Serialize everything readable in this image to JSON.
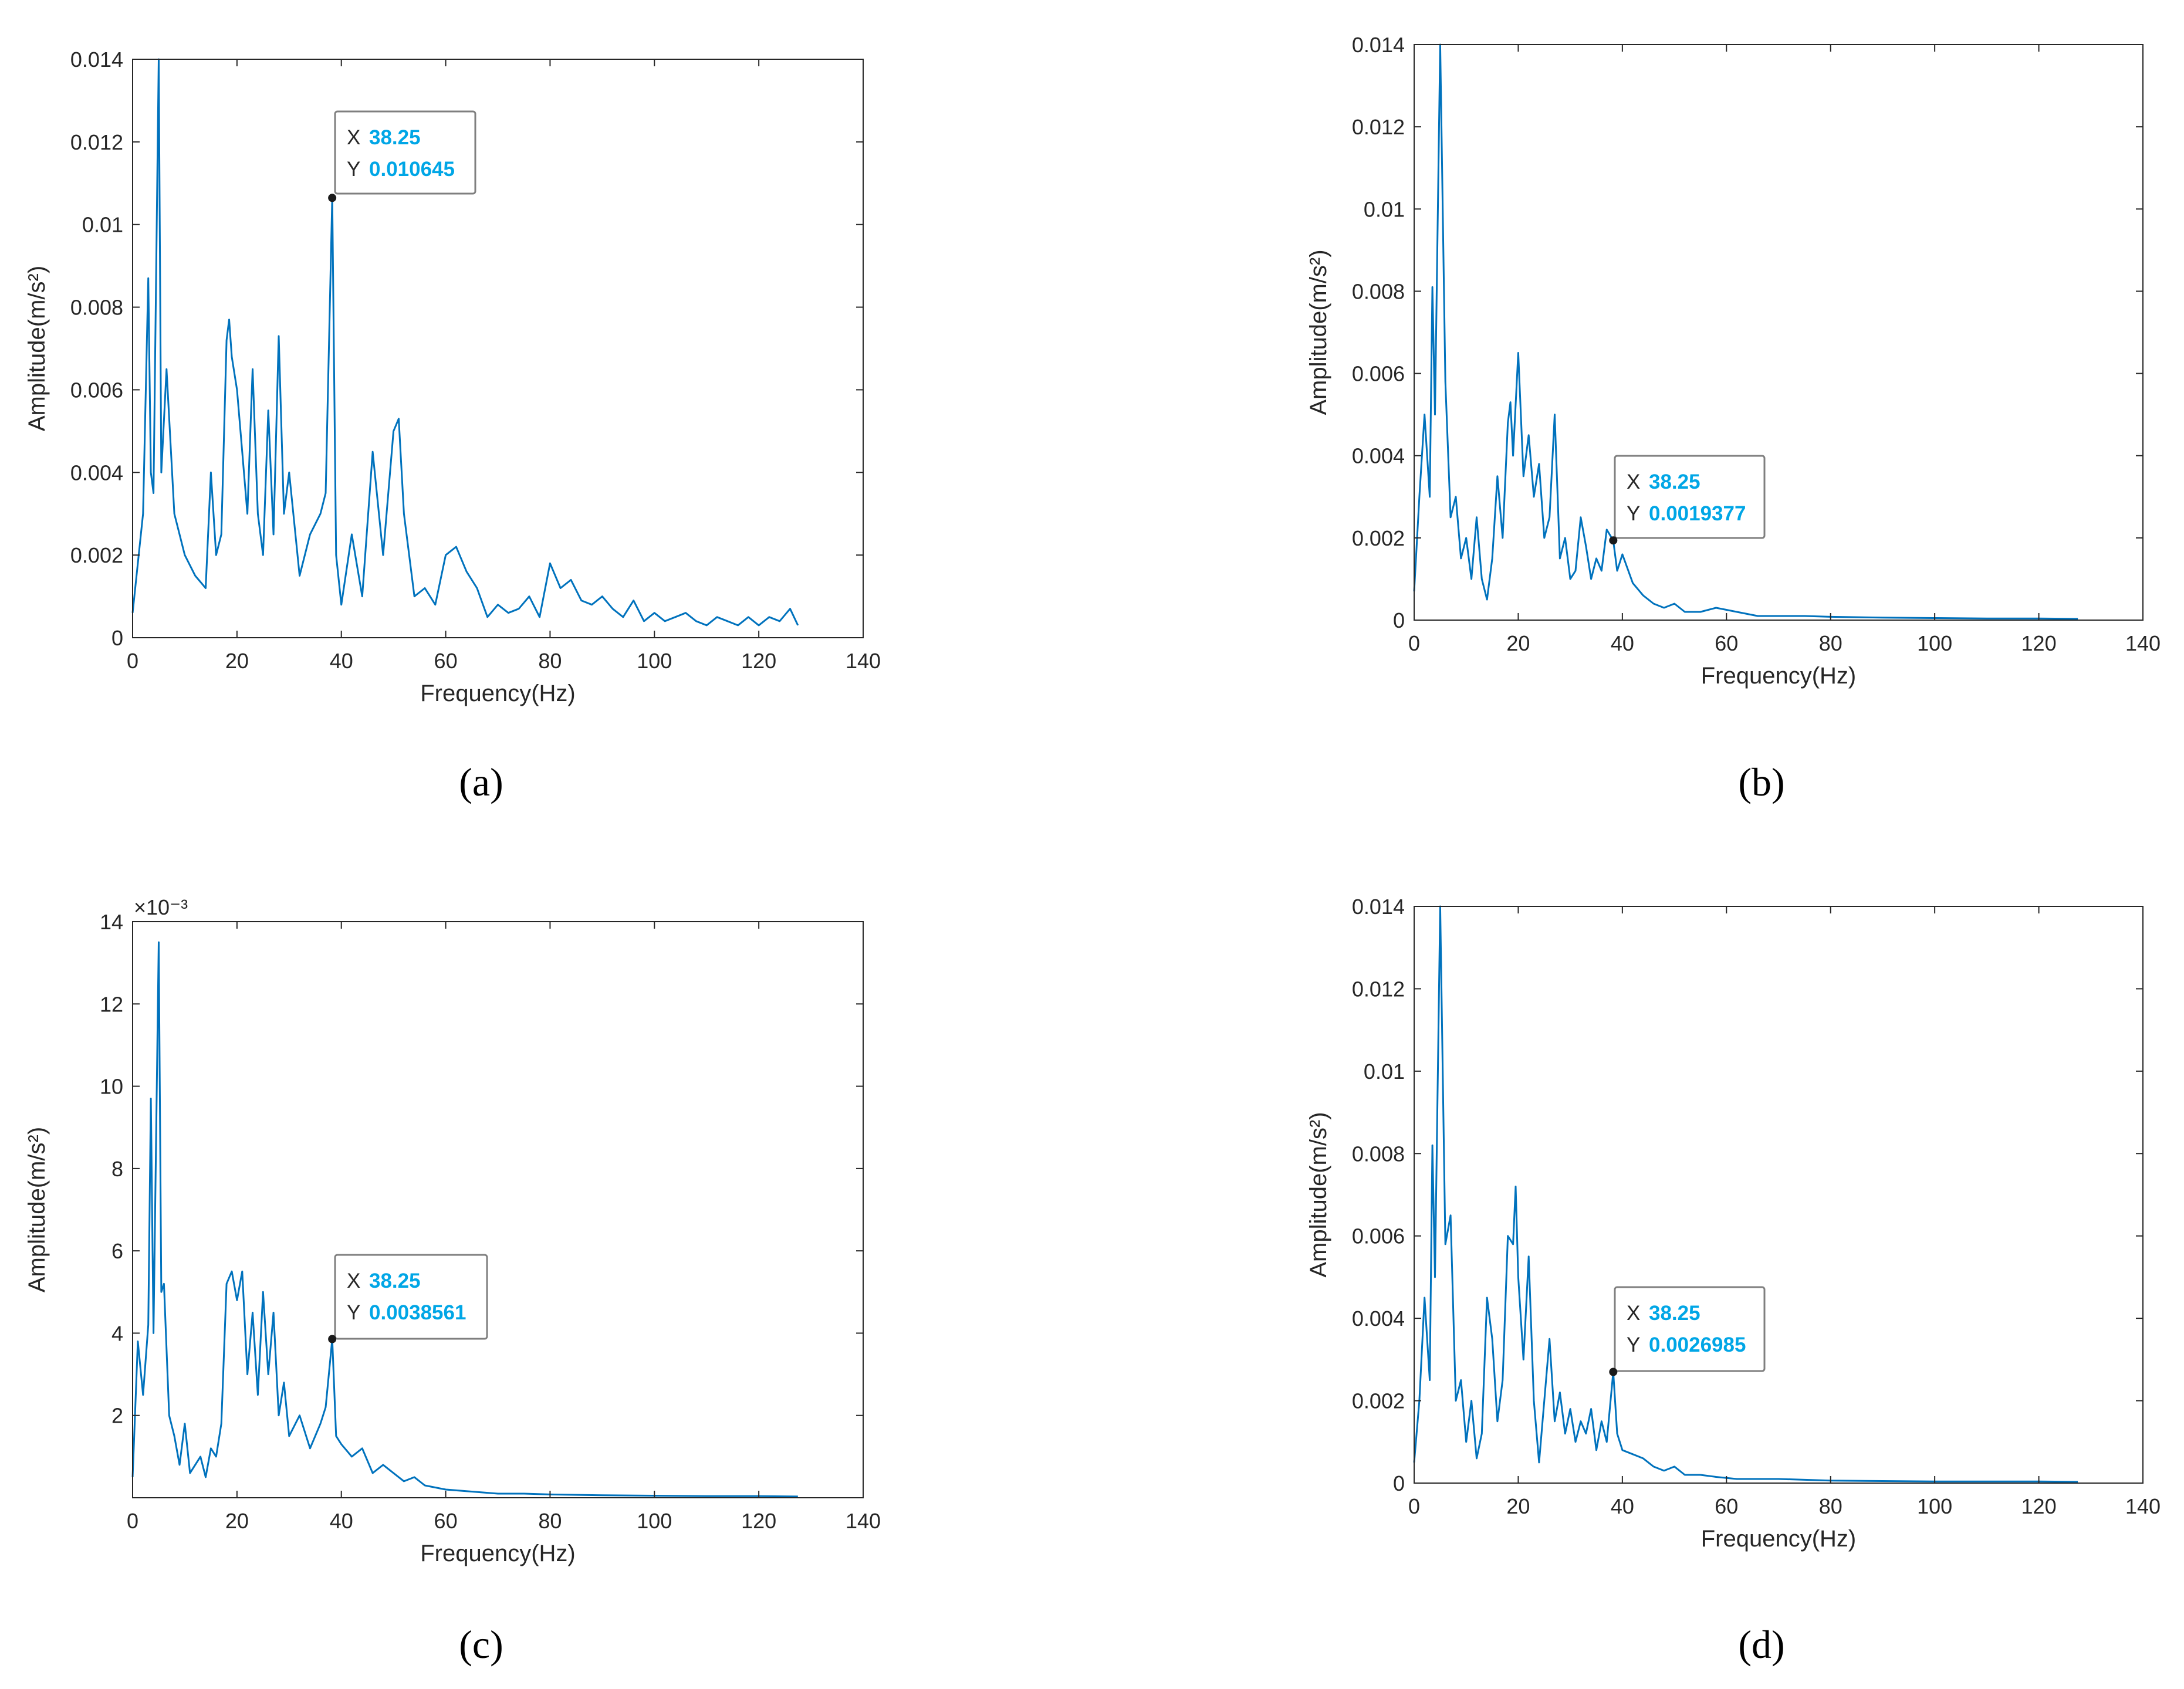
{
  "chart_data": [
    {
      "type": "line",
      "panel": "a",
      "caption": "(a)",
      "title": "",
      "xlabel": "Frequency(Hz)",
      "ylabel": "Amplitude(m/s²)",
      "xlim": [
        0,
        140
      ],
      "ylim": [
        0,
        0.014
      ],
      "xticks": [
        0,
        20,
        40,
        60,
        80,
        100,
        120,
        140
      ],
      "xtick_labels": [
        "0",
        "20",
        "40",
        "60",
        "80",
        "100",
        "120",
        "140"
      ],
      "yticks": [
        0,
        0.002,
        0.004,
        0.006,
        0.008,
        0.01,
        0.012,
        0.014
      ],
      "ytick_labels": [
        "0",
        "0.002",
        "0.004",
        "0.006",
        "0.008",
        "0.01",
        "0.012",
        "0.014"
      ],
      "y_exponent": "",
      "series_color": "#0072bd",
      "x": [
        0,
        2,
        3,
        3.5,
        4,
        5,
        5.5,
        6.5,
        8,
        10,
        12,
        14,
        15,
        16,
        17,
        18,
        18.5,
        19,
        20,
        21,
        22,
        23,
        24,
        25,
        26,
        27,
        28,
        29,
        30,
        32,
        34,
        36,
        37,
        38.25,
        39,
        40,
        42,
        44,
        46,
        48,
        50,
        51,
        52,
        54,
        56,
        58,
        60,
        62,
        64,
        66,
        68,
        70,
        72,
        74,
        76,
        78,
        80,
        82,
        84,
        86,
        88,
        90,
        92,
        94,
        96,
        98,
        100,
        102,
        104,
        106,
        108,
        110,
        112,
        114,
        116,
        118,
        120,
        122,
        124,
        126,
        127.5
      ],
      "y": [
        0.0006,
        0.003,
        0.0087,
        0.004,
        0.0035,
        0.014,
        0.004,
        0.0065,
        0.003,
        0.002,
        0.0015,
        0.0012,
        0.004,
        0.002,
        0.0025,
        0.0072,
        0.0077,
        0.0068,
        0.006,
        0.0045,
        0.003,
        0.0065,
        0.003,
        0.002,
        0.0055,
        0.0025,
        0.0073,
        0.003,
        0.004,
        0.0015,
        0.0025,
        0.003,
        0.0035,
        0.010645,
        0.002,
        0.0008,
        0.0025,
        0.001,
        0.0045,
        0.002,
        0.005,
        0.0053,
        0.003,
        0.001,
        0.0012,
        0.0008,
        0.002,
        0.0022,
        0.0016,
        0.0012,
        0.0005,
        0.0008,
        0.0006,
        0.0007,
        0.001,
        0.0005,
        0.0018,
        0.0012,
        0.0014,
        0.0009,
        0.0008,
        0.001,
        0.0007,
        0.0005,
        0.0009,
        0.0004,
        0.0006,
        0.0004,
        0.0005,
        0.0006,
        0.0004,
        0.0003,
        0.0005,
        0.0004,
        0.0003,
        0.0005,
        0.0003,
        0.0005,
        0.0004,
        0.0007,
        0.0003
      ],
      "datatip": {
        "x_key": "X",
        "x_value": "38.25",
        "y_key": "Y",
        "y_value": "0.010645",
        "x": 38.25,
        "y": 0.010645
      }
    },
    {
      "type": "line",
      "panel": "b",
      "caption": "(b)",
      "title": "",
      "xlabel": "Frequency(Hz)",
      "ylabel": "Amplitude(m/s²)",
      "xlim": [
        0,
        140
      ],
      "ylim": [
        0,
        0.014
      ],
      "xticks": [
        0,
        20,
        40,
        60,
        80,
        100,
        120,
        140
      ],
      "xtick_labels": [
        "0",
        "20",
        "40",
        "60",
        "80",
        "100",
        "120",
        "140"
      ],
      "yticks": [
        0,
        0.002,
        0.004,
        0.006,
        0.008,
        0.01,
        0.012,
        0.014
      ],
      "ytick_labels": [
        "0",
        "0.002",
        "0.004",
        "0.006",
        "0.008",
        "0.01",
        "0.012",
        "0.014"
      ],
      "y_exponent": "",
      "series_color": "#0072bd",
      "x": [
        0,
        1,
        2,
        3,
        3.5,
        4,
        5,
        6,
        7,
        8,
        9,
        10,
        11,
        12,
        13,
        14,
        15,
        16,
        17,
        18,
        18.5,
        19,
        20,
        21,
        22,
        23,
        24,
        25,
        26,
        27,
        28,
        29,
        30,
        31,
        32,
        33,
        34,
        35,
        36,
        37,
        38.25,
        39,
        40,
        42,
        44,
        46,
        48,
        50,
        52,
        55,
        58,
        62,
        66,
        70,
        75,
        80,
        90,
        100,
        110,
        120,
        127.5
      ],
      "y": [
        0.0007,
        0.003,
        0.005,
        0.003,
        0.0081,
        0.005,
        0.014,
        0.0058,
        0.0025,
        0.003,
        0.0015,
        0.002,
        0.001,
        0.0025,
        0.001,
        0.0005,
        0.0015,
        0.0035,
        0.002,
        0.0048,
        0.0053,
        0.004,
        0.0065,
        0.0035,
        0.0045,
        0.003,
        0.0038,
        0.002,
        0.0025,
        0.005,
        0.0015,
        0.002,
        0.001,
        0.0012,
        0.0025,
        0.0018,
        0.001,
        0.0015,
        0.0012,
        0.0022,
        0.0019377,
        0.0012,
        0.0016,
        0.0009,
        0.0006,
        0.0004,
        0.0003,
        0.0004,
        0.0002,
        0.0002,
        0.0003,
        0.0002,
        0.0001,
        0.0001,
        0.0001,
        8e-05,
        6e-05,
        5e-05,
        4e-05,
        4e-05,
        3e-05
      ],
      "datatip": {
        "x_key": "X",
        "x_value": "38.25",
        "y_key": "Y",
        "y_value": "0.0019377",
        "x": 38.25,
        "y": 0.0019377
      }
    },
    {
      "type": "line",
      "panel": "c",
      "caption": "(c)",
      "title": "",
      "xlabel": "Frequency(Hz)",
      "ylabel": "Amplitude(m/s²)",
      "xlim": [
        0,
        140
      ],
      "ylim": [
        0,
        0.014
      ],
      "xticks": [
        0,
        20,
        40,
        60,
        80,
        100,
        120,
        140
      ],
      "xtick_labels": [
        "0",
        "20",
        "40",
        "60",
        "80",
        "100",
        "120",
        "140"
      ],
      "yticks": [
        0.002,
        0.004,
        0.006,
        0.008,
        0.01,
        0.012,
        0.014
      ],
      "ytick_labels": [
        "2",
        "4",
        "6",
        "8",
        "10",
        "12",
        "14"
      ],
      "y_exponent": "×10⁻³",
      "series_color": "#0072bd",
      "x": [
        0,
        1,
        2,
        3,
        3.5,
        4,
        5,
        5.5,
        6,
        7,
        8,
        9,
        10,
        11,
        12,
        13,
        14,
        15,
        16,
        17,
        18,
        19,
        20,
        21,
        22,
        23,
        24,
        25,
        26,
        27,
        28,
        29,
        30,
        32,
        34,
        36,
        37,
        38.25,
        39,
        40,
        42,
        44,
        46,
        48,
        50,
        52,
        54,
        56,
        58,
        60,
        65,
        70,
        75,
        80,
        90,
        100,
        110,
        120,
        127.5
      ],
      "y": [
        0.0005,
        0.0038,
        0.0025,
        0.0042,
        0.0097,
        0.004,
        0.0135,
        0.005,
        0.0052,
        0.002,
        0.0015,
        0.0008,
        0.0018,
        0.0006,
        0.0008,
        0.001,
        0.0005,
        0.0012,
        0.001,
        0.0018,
        0.0052,
        0.0055,
        0.0048,
        0.0055,
        0.003,
        0.0045,
        0.0025,
        0.005,
        0.003,
        0.0045,
        0.002,
        0.0028,
        0.0015,
        0.002,
        0.0012,
        0.0018,
        0.0022,
        0.0038561,
        0.0015,
        0.0013,
        0.001,
        0.0012,
        0.0006,
        0.0008,
        0.0006,
        0.0004,
        0.0005,
        0.0003,
        0.00025,
        0.0002,
        0.00015,
        0.0001,
        0.0001,
        8e-05,
        6e-05,
        5e-05,
        4e-05,
        4e-05,
        3e-05
      ],
      "datatip": {
        "x_key": "X",
        "x_value": "38.25",
        "y_key": "Y",
        "y_value": "0.0038561",
        "x": 38.25,
        "y": 0.0038561
      }
    },
    {
      "type": "line",
      "panel": "d",
      "caption": "(d)",
      "title": "",
      "xlabel": "Frequency(Hz)",
      "ylabel": "Amplitude(m/s²)",
      "xlim": [
        0,
        140
      ],
      "ylim": [
        0,
        0.014
      ],
      "xticks": [
        0,
        20,
        40,
        60,
        80,
        100,
        120,
        140
      ],
      "xtick_labels": [
        "0",
        "20",
        "40",
        "60",
        "80",
        "100",
        "120",
        "140"
      ],
      "yticks": [
        0,
        0.002,
        0.004,
        0.006,
        0.008,
        0.01,
        0.012,
        0.014
      ],
      "ytick_labels": [
        "0",
        "0.002",
        "0.004",
        "0.006",
        "0.008",
        "0.01",
        "0.012",
        "0.014"
      ],
      "y_exponent": "",
      "series_color": "#0072bd",
      "x": [
        0,
        1,
        2,
        3,
        3.5,
        4,
        5,
        6,
        7,
        8,
        9,
        10,
        11,
        12,
        13,
        14,
        15,
        16,
        17,
        18,
        19,
        19.5,
        20,
        21,
        22,
        23,
        24,
        25,
        26,
        27,
        28,
        29,
        30,
        31,
        32,
        33,
        34,
        35,
        36,
        37,
        38.25,
        39,
        40,
        42,
        44,
        46,
        48,
        50,
        52,
        55,
        58,
        62,
        66,
        70,
        75,
        80,
        90,
        100,
        110,
        120,
        127.5
      ],
      "y": [
        0.0005,
        0.002,
        0.0045,
        0.0025,
        0.0082,
        0.005,
        0.014,
        0.0058,
        0.0065,
        0.002,
        0.0025,
        0.001,
        0.002,
        0.0006,
        0.0012,
        0.0045,
        0.0035,
        0.0015,
        0.0025,
        0.006,
        0.0058,
        0.0072,
        0.005,
        0.003,
        0.0055,
        0.002,
        0.0005,
        0.002,
        0.0035,
        0.0015,
        0.0022,
        0.0012,
        0.0018,
        0.001,
        0.0015,
        0.0012,
        0.0018,
        0.0008,
        0.0015,
        0.001,
        0.0026985,
        0.0012,
        0.0008,
        0.0007,
        0.0006,
        0.0004,
        0.0003,
        0.0004,
        0.0002,
        0.0002,
        0.00015,
        0.0001,
        0.0001,
        0.0001,
        8e-05,
        6e-05,
        5e-05,
        4e-05,
        4e-05,
        4e-05,
        3e-05
      ],
      "datatip": {
        "x_key": "X",
        "x_value": "38.25",
        "y_key": "Y",
        "y_value": "0.0026985",
        "x": 38.25,
        "y": 0.0026985
      }
    }
  ]
}
